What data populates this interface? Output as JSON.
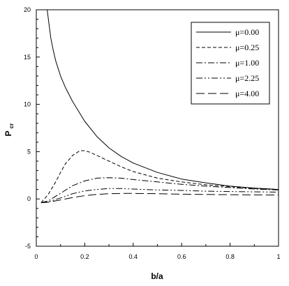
{
  "chart_data": {
    "type": "line",
    "xlabel": "b/a",
    "ylabel_main": "P",
    "ylabel_sub": "cr",
    "xlim": [
      0,
      1
    ],
    "ylim": [
      -5,
      20
    ],
    "xticks": [
      0,
      0.2,
      0.4,
      0.6,
      0.8,
      1
    ],
    "xtick_labels": [
      "0",
      "0.2",
      "0.4",
      "0.6",
      "0.8",
      "1"
    ],
    "yticks": [
      -5,
      0,
      5,
      10,
      15,
      20
    ],
    "ytick_labels": [
      "-5",
      "0",
      "5",
      "10",
      "15",
      "20"
    ],
    "grid": false,
    "legend_position": "top-right",
    "series": [
      {
        "name": "μ=0.00",
        "dash": "solid",
        "x": [
          0.045,
          0.05,
          0.06,
          0.07,
          0.08,
          0.1,
          0.12,
          0.15,
          0.2,
          0.25,
          0.3,
          0.35,
          0.4,
          0.5,
          0.6,
          0.7,
          0.8,
          0.9,
          1.0
        ],
        "y": [
          20.0,
          19.0,
          17.0,
          15.7,
          14.6,
          13.0,
          11.8,
          10.3,
          8.2,
          6.6,
          5.4,
          4.5,
          3.8,
          2.8,
          2.1,
          1.7,
          1.35,
          1.15,
          1.0
        ]
      },
      {
        "name": "μ=0.25",
        "dash": "dashed",
        "x": [
          0.02,
          0.05,
          0.08,
          0.1,
          0.12,
          0.15,
          0.18,
          0.2,
          0.22,
          0.25,
          0.3,
          0.35,
          0.4,
          0.5,
          0.6,
          0.7,
          0.8,
          0.9,
          1.0
        ],
        "y": [
          -0.4,
          0.5,
          1.8,
          2.8,
          3.7,
          4.6,
          5.1,
          5.1,
          4.95,
          4.6,
          4.0,
          3.4,
          2.9,
          2.2,
          1.8,
          1.5,
          1.3,
          1.1,
          1.0
        ]
      },
      {
        "name": "μ=1.00",
        "dash": "dashdot",
        "x": [
          0.02,
          0.05,
          0.1,
          0.15,
          0.2,
          0.25,
          0.3,
          0.35,
          0.4,
          0.5,
          0.6,
          0.7,
          0.8,
          0.9,
          1.0
        ],
        "y": [
          -0.4,
          -0.2,
          0.6,
          1.4,
          1.9,
          2.2,
          2.25,
          2.2,
          2.05,
          1.8,
          1.55,
          1.35,
          1.2,
          1.05,
          0.95
        ]
      },
      {
        "name": "μ=2.25",
        "dash": "dashdotdot",
        "x": [
          0.02,
          0.05,
          0.1,
          0.15,
          0.2,
          0.25,
          0.3,
          0.35,
          0.4,
          0.5,
          0.6,
          0.7,
          0.8,
          0.9,
          1.0
        ],
        "y": [
          -0.4,
          -0.3,
          0.1,
          0.55,
          0.85,
          1.0,
          1.1,
          1.1,
          1.05,
          0.95,
          0.9,
          0.82,
          0.78,
          0.75,
          0.72
        ]
      },
      {
        "name": "μ=4.00",
        "dash": "longdash",
        "x": [
          0.02,
          0.05,
          0.1,
          0.15,
          0.2,
          0.25,
          0.3,
          0.35,
          0.4,
          0.5,
          0.6,
          0.7,
          0.8,
          0.9,
          1.0
        ],
        "y": [
          -0.4,
          -0.35,
          -0.1,
          0.15,
          0.35,
          0.48,
          0.55,
          0.58,
          0.58,
          0.55,
          0.5,
          0.47,
          0.45,
          0.43,
          0.42
        ]
      }
    ]
  }
}
